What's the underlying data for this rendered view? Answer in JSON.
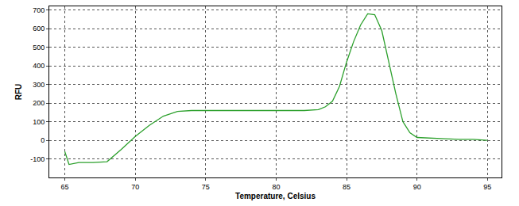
{
  "chart_data": {
    "type": "line",
    "x_label": "Temperature, Celsius",
    "y_label": "RFU",
    "x": [
      65,
      65.3,
      66,
      67,
      68,
      69,
      70,
      71,
      72,
      73,
      74,
      75,
      76,
      77,
      78,
      79,
      80,
      81,
      82,
      83,
      83.5,
      84,
      84.5,
      85,
      85.5,
      86,
      86.5,
      87,
      87.5,
      88,
      88.5,
      89,
      89.5,
      90,
      91,
      92,
      93,
      94,
      95
    ],
    "series": [
      {
        "color": "#2ca02c",
        "values": [
          -60,
          -130,
          -120,
          -120,
          -115,
          -50,
          20,
          80,
          130,
          155,
          160,
          160,
          160,
          160,
          160,
          160,
          160,
          160,
          160,
          165,
          180,
          210,
          290,
          420,
          530,
          620,
          680,
          675,
          590,
          420,
          250,
          100,
          40,
          15,
          10,
          8,
          5,
          5,
          0
        ]
      }
    ],
    "xlim": [
      63.9,
      96
    ],
    "xticks": [
      65,
      70,
      75,
      80,
      85,
      90,
      95
    ],
    "ylim": [
      -200,
      720
    ],
    "yticks": [
      -100,
      0,
      100,
      200,
      300,
      400,
      500,
      600,
      700
    ],
    "grid": true
  }
}
